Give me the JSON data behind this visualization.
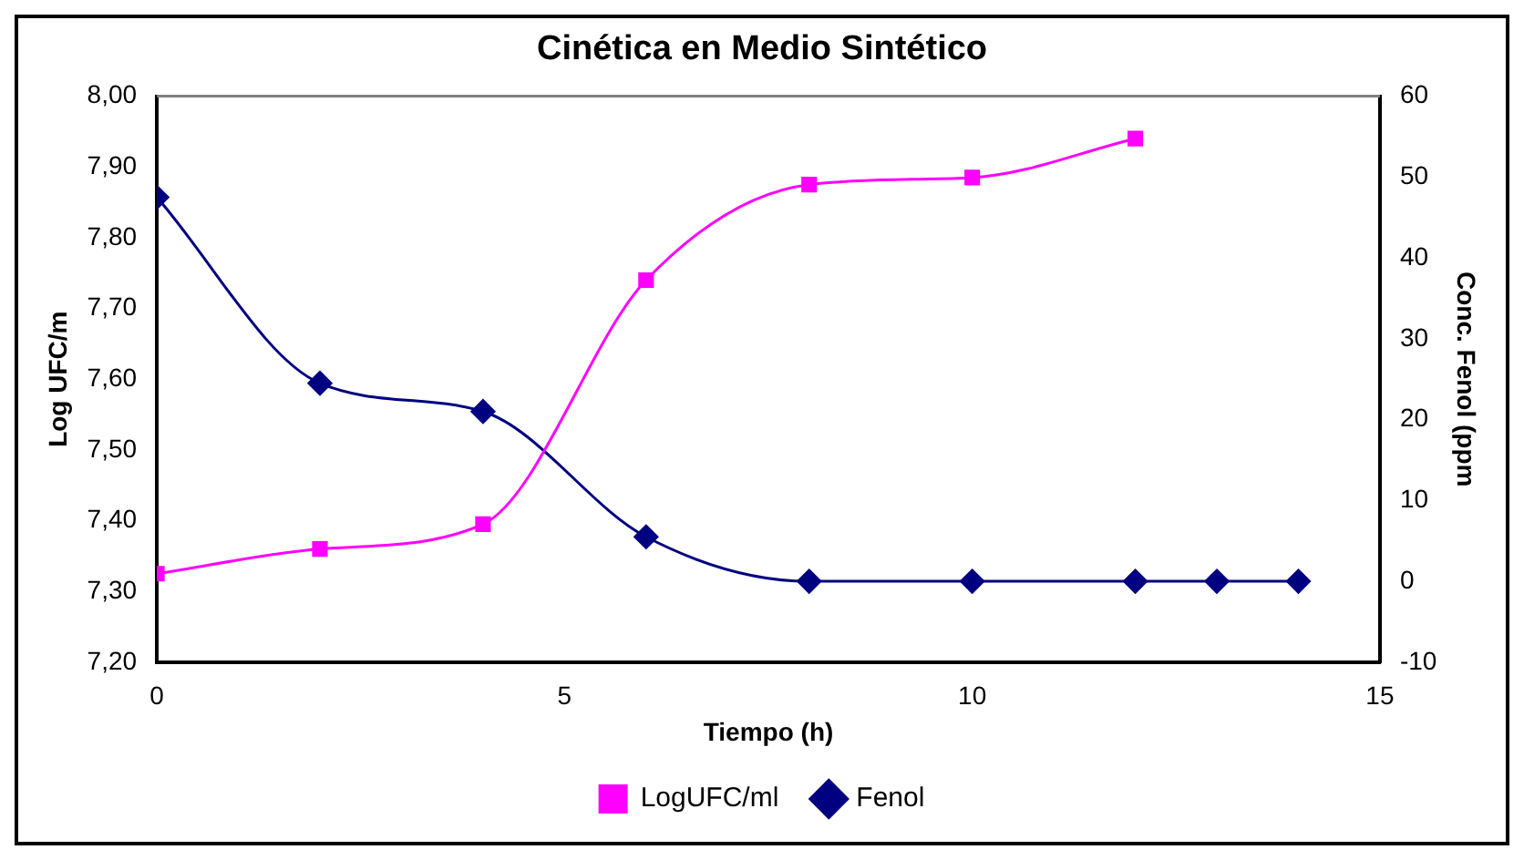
{
  "chart_data": {
    "type": "line",
    "title": "Cinética en Medio Sintético",
    "xlabel": "Tiempo (h)",
    "ylabel": "Log UFC/m",
    "y2label": "Conc. Fenol (ppm",
    "xlim": [
      0,
      15
    ],
    "xticks": [
      0,
      5,
      10,
      15
    ],
    "ylim": [
      7.2,
      8.0
    ],
    "yticks": [
      {
        "value": 7.2,
        "label": "7,20"
      },
      {
        "value": 7.3,
        "label": "7,30"
      },
      {
        "value": 7.4,
        "label": "7,40"
      },
      {
        "value": 7.5,
        "label": "7,50"
      },
      {
        "value": 7.6,
        "label": "7,60"
      },
      {
        "value": 7.7,
        "label": "7,70"
      },
      {
        "value": 7.8,
        "label": "7,80"
      },
      {
        "value": 7.9,
        "label": "7,90"
      },
      {
        "value": 8.0,
        "label": "8,00"
      }
    ],
    "y2lim": [
      -10,
      60
    ],
    "y2ticks": [
      -10,
      0,
      10,
      20,
      30,
      40,
      50,
      60
    ],
    "grid": false,
    "legend": "bottom",
    "series": [
      {
        "name": "LogUFC/ml",
        "color": "#ff00ff",
        "marker": "square",
        "x": [
          0,
          2,
          4,
          6,
          8,
          10,
          12
        ],
        "values": [
          7.325,
          7.36,
          7.395,
          7.74,
          7.875,
          7.885,
          7.94
        ]
      },
      {
        "name": "Fenol",
        "color": "#000080",
        "marker": "diamond",
        "axis": "y2",
        "x": [
          0,
          2,
          4,
          6,
          8,
          10,
          12,
          13,
          14
        ],
        "values": [
          47.5,
          24.5,
          21,
          5.5,
          0,
          0,
          0,
          0,
          0
        ]
      }
    ]
  }
}
